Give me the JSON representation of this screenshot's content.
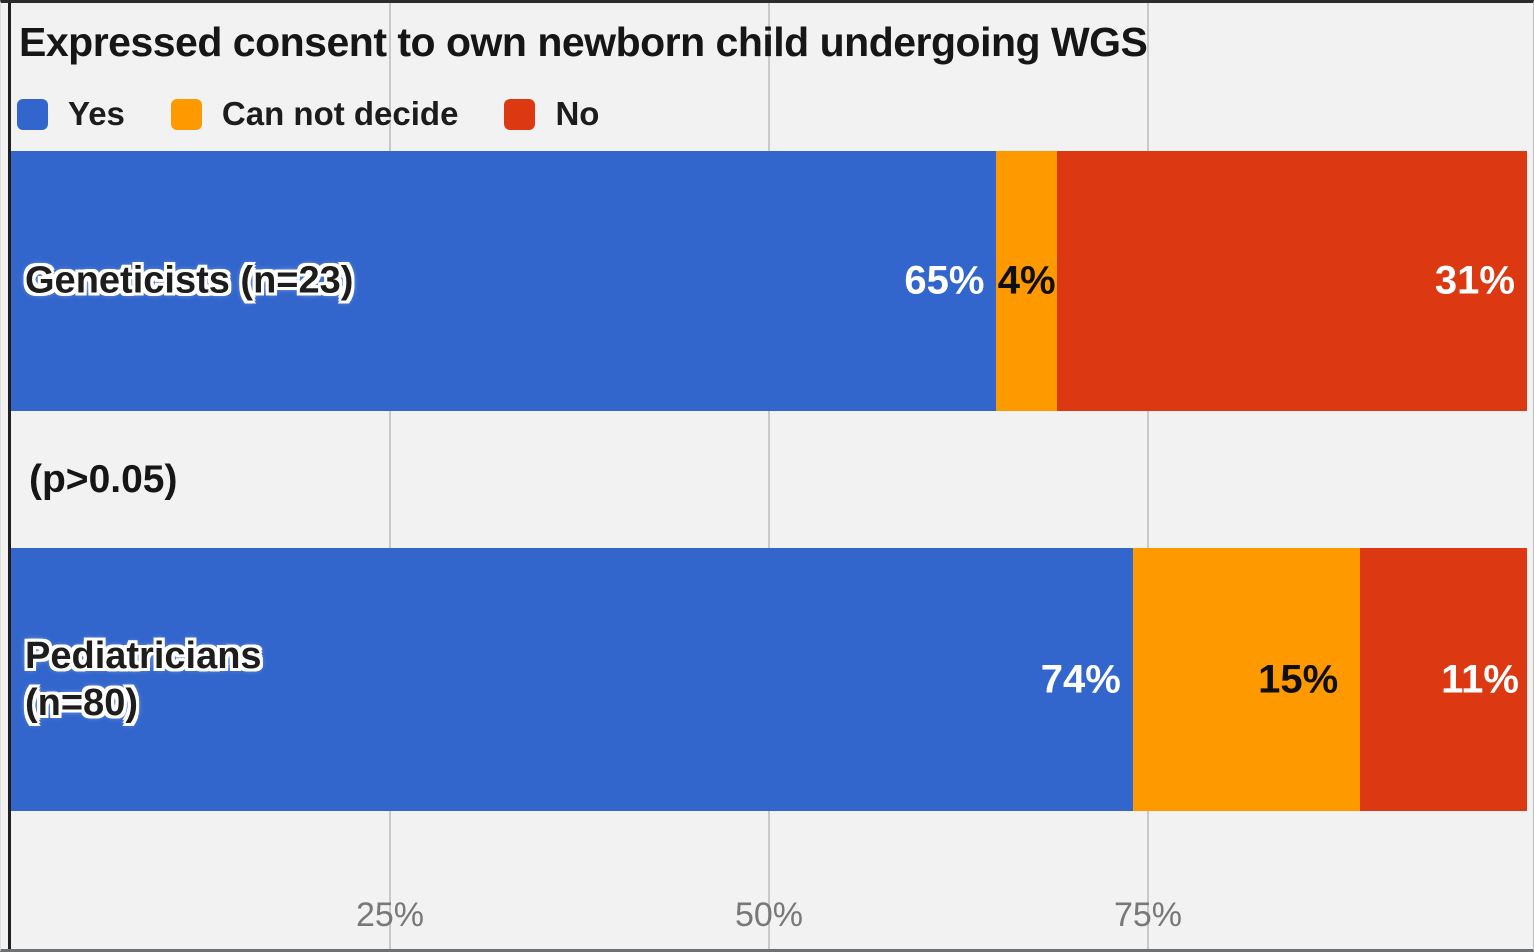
{
  "chart_data": {
    "type": "bar",
    "stacked": true,
    "orientation": "horizontal",
    "title": "Expressed consent to own newborn child undergoing WGS",
    "categories": [
      "Geneticists (n=23)",
      "Pediatricians (n=80)"
    ],
    "series": [
      {
        "name": "Yes",
        "color": "#3366cc",
        "values": [
          65,
          74
        ]
      },
      {
        "name": "Can not decide",
        "color": "#ff9900",
        "values": [
          4,
          15
        ]
      },
      {
        "name": "No",
        "color": "#dc3912",
        "values": [
          31,
          11
        ]
      }
    ],
    "annotation": "(p>0.05)",
    "xlim": [
      0,
      100
    ],
    "x_tick_labels": [
      "25%",
      "50%",
      "75%"
    ],
    "legend_position": "top",
    "grid": true
  },
  "title": "Expressed consent to own newborn child undergoing WGS",
  "legend": {
    "items": [
      {
        "label": "Yes",
        "color": "#3366cc"
      },
      {
        "label": "Can not decide",
        "color": "#ff9900"
      },
      {
        "label": "No",
        "color": "#dc3912"
      }
    ]
  },
  "bars": [
    {
      "label_line1": "Geneticists (n=23)",
      "label_line2": "",
      "segments": [
        {
          "pct": 65,
          "value_label": "65%",
          "color": "#3366cc",
          "text_color": "#ffffff",
          "align": "right"
        },
        {
          "pct": 4,
          "value_label": "4%",
          "color": "#ff9900",
          "text_color": "#0f0f0f",
          "align": "center"
        },
        {
          "pct": 31,
          "value_label": "31%",
          "color": "#dc3912",
          "text_color": "#ffffff",
          "align": "right"
        }
      ]
    },
    {
      "label_line1": "Pediatricians",
      "label_line2": "(n=80)",
      "segments": [
        {
          "pct": 74,
          "value_label": "74%",
          "color": "#3366cc",
          "text_color": "#ffffff",
          "align": "right"
        },
        {
          "pct": 15,
          "value_label": "15%",
          "color": "#ff9900",
          "text_color": "#0f0f0f",
          "align": "right"
        },
        {
          "pct": 11,
          "value_label": "11%",
          "color": "#dc3912",
          "text_color": "#ffffff",
          "align": "right"
        }
      ]
    }
  ],
  "annotation": "(p>0.05)",
  "x_axis": {
    "ticks": [
      {
        "label": "25%",
        "pct": 25
      },
      {
        "label": "50%",
        "pct": 50
      },
      {
        "label": "75%",
        "pct": 75
      }
    ]
  },
  "colors": {
    "background": "#f2f2f2",
    "gridline": "#c9c9c9",
    "axis_line": "#1f1f1f",
    "tick_text": "#787878",
    "title_text": "#161616"
  }
}
